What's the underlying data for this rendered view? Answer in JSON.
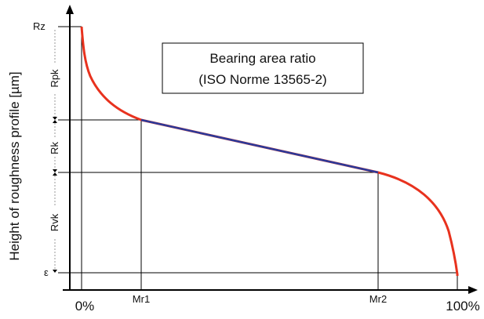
{
  "title": {
    "line1": "Bearing area ratio",
    "line2": "(ISO Norme 13565-2)"
  },
  "y_axis_label": "Height of roughness profile [µm]",
  "levels": {
    "rz": "Rz",
    "epsilon": "ε"
  },
  "zones": {
    "rpk": "Rpk",
    "rk": "Rk",
    "rvk": "Rvk"
  },
  "x_ticks": {
    "zero": "0%",
    "mr1": "Mr1",
    "mr2": "Mr2",
    "hundred": "100%"
  },
  "colors": {
    "curve": "#e8321e",
    "line": "#2b3a9a",
    "axis": "#000000",
    "guide": "#000000",
    "dotted": "#888888"
  }
}
